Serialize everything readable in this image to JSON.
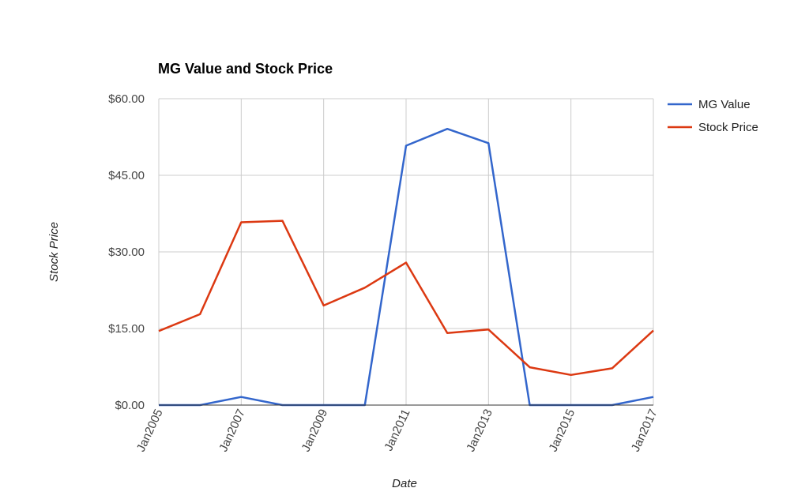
{
  "chart_data": {
    "type": "line",
    "title": "MG Value and Stock Price",
    "xlabel": "Date",
    "ylabel": "Stock Price",
    "x": [
      2005,
      2006,
      2007,
      2008,
      2009,
      2010,
      2011,
      2012,
      2013,
      2014,
      2015,
      2016,
      2017
    ],
    "x_tick_labels": [
      "Jan2005",
      "Jan2007",
      "Jan2009",
      "Jan2011",
      "Jan2013",
      "Jan2015",
      "Jan2017"
    ],
    "x_ticks": [
      2005,
      2007,
      2009,
      2011,
      2013,
      2015,
      2017
    ],
    "xlim": [
      2005,
      2017
    ],
    "ylim": [
      0,
      60
    ],
    "y_ticks": [
      0,
      15,
      30,
      45,
      60
    ],
    "y_tick_labels": [
      "$0.00",
      "$15.00",
      "$30.00",
      "$45.00",
      "$60.00"
    ],
    "grid": true,
    "legend_position": "right",
    "series": [
      {
        "name": "MG Value",
        "color": "#3366cc",
        "x": [
          2005,
          2006,
          2007,
          2008,
          2009,
          2010,
          2011,
          2012,
          2013,
          2014,
          2015,
          2016,
          2017
        ],
        "values": [
          0,
          0,
          1.6,
          0,
          0,
          0,
          50.8,
          54.1,
          51.3,
          0,
          0,
          0,
          1.6
        ]
      },
      {
        "name": "Stock Price",
        "color": "#dc3912",
        "x": [
          2005,
          2006,
          2007,
          2008,
          2009,
          2010,
          2011,
          2012,
          2013,
          2014,
          2015,
          2016,
          2017
        ],
        "values": [
          14.5,
          17.8,
          35.8,
          36.1,
          19.5,
          23.0,
          27.9,
          14.1,
          14.8,
          7.4,
          5.9,
          7.2,
          14.6
        ]
      }
    ]
  }
}
